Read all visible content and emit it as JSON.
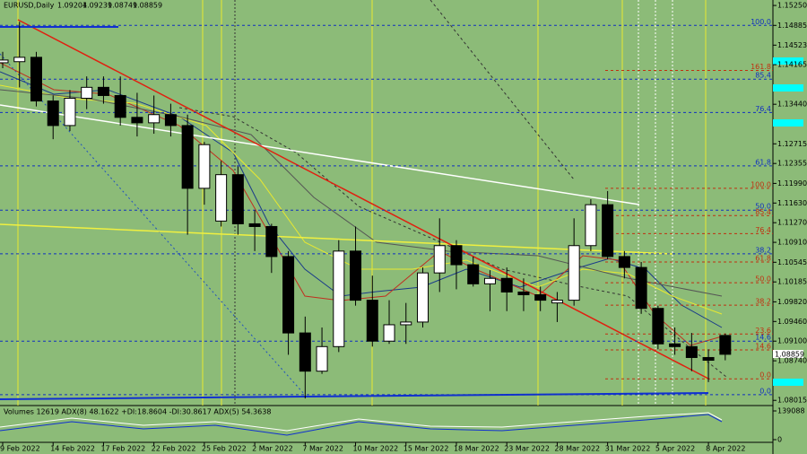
{
  "chart_data": {
    "type": "candlestick",
    "title": "EURUSD,Daily",
    "categories": [
      "9 Feb 2022",
      null,
      null,
      "14 Feb 2022",
      null,
      null,
      "17 Feb 2022",
      null,
      null,
      "22 Feb 2022",
      null,
      null,
      "25 Feb 2022",
      null,
      null,
      "2 Mar 2022",
      null,
      null,
      "7 Mar 2022",
      null,
      null,
      "10 Mar 2022",
      null,
      null,
      "15 Mar 2022",
      null,
      null,
      "18 Mar 2022",
      null,
      null,
      "23 Mar 2022",
      null,
      null,
      "28 Mar 2022",
      null,
      null,
      "31 Mar 2022",
      null,
      null,
      "5 Apr 2022",
      null,
      null,
      "8 Apr 2022",
      null
    ],
    "open": [
      1.142,
      1.1422,
      1.143,
      1.135,
      1.1305,
      1.1355,
      1.1375,
      1.136,
      1.132,
      1.131,
      1.1325,
      1.1305,
      1.119,
      1.113,
      1.1215,
      1.1125,
      1.112,
      1.1065,
      1.0925,
      1.0855,
      1.09,
      1.1075,
      1.0985,
      1.091,
      1.094,
      1.0945,
      1.1035,
      1.1085,
      1.105,
      1.1015,
      1.1025,
      1.1,
      1.0995,
      1.098,
      1.0985,
      1.1085,
      1.116,
      1.1065,
      1.1045,
      1.097,
      1.0905,
      1.09,
      1.088,
      1.09204
    ],
    "high": [
      1.144,
      1.1495,
      1.144,
      1.136,
      1.137,
      1.1395,
      1.1395,
      1.1395,
      1.1365,
      1.136,
      1.1345,
      1.1325,
      1.1275,
      1.124,
      1.123,
      1.115,
      1.1125,
      1.1075,
      1.0955,
      1.0935,
      1.1095,
      1.112,
      1.103,
      1.0985,
      1.098,
      1.1045,
      1.1135,
      1.1095,
      1.1065,
      1.104,
      1.1045,
      1.1025,
      1.101,
      1.1,
      1.1135,
      1.117,
      1.1185,
      1.1075,
      1.1055,
      1.0975,
      1.0935,
      1.0925,
      1.0895,
      1.09239
    ],
    "low": [
      1.141,
      1.1375,
      1.134,
      1.128,
      1.1295,
      1.1335,
      1.1345,
      1.1305,
      1.1285,
      1.129,
      1.1285,
      1.1105,
      1.116,
      1.112,
      1.1105,
      1.1075,
      1.1035,
      1.0885,
      1.0805,
      1.085,
      1.089,
      1.0975,
      1.09,
      1.0905,
      1.0905,
      1.0935,
      1.1,
      1.1005,
      1.101,
      1.0965,
      1.0965,
      1.0965,
      1.0965,
      1.0945,
      1.0975,
      1.1075,
      1.106,
      1.1025,
      1.096,
      1.0895,
      1.0885,
      1.0855,
      1.0835,
      1.08749
    ],
    "close": [
      1.1425,
      1.143,
      1.135,
      1.1305,
      1.1355,
      1.1375,
      1.136,
      1.132,
      1.131,
      1.1325,
      1.1305,
      1.119,
      1.127,
      1.1215,
      1.1125,
      1.112,
      1.1065,
      1.0925,
      1.0855,
      1.09,
      1.1075,
      1.0985,
      1.091,
      1.094,
      1.0945,
      1.1035,
      1.1085,
      1.105,
      1.1015,
      1.1025,
      1.1,
      1.0995,
      1.0985,
      1.0985,
      1.1085,
      1.116,
      1.1065,
      1.1045,
      1.097,
      1.0905,
      1.09,
      1.088,
      1.0875,
      1.08859
    ],
    "up_color": "#ffffff",
    "down_color": "#000000",
    "ylim": [
      1.0792,
      1.1535
    ],
    "yticks": [
      {
        "value": 1.1525,
        "label": "1.15250"
      },
      1.14885,
      1.14523,
      1.14165,
      {
        "value": 1.1344,
        "label": "1.13440"
      },
      1.12715,
      1.12355,
      {
        "value": 1.1199,
        "label": "1.11990"
      },
      {
        "value": 1.1163,
        "label": "1.11630"
      },
      {
        "value": 1.1127,
        "label": "1.11270"
      },
      {
        "value": 1.1091,
        "label": "1.10910"
      },
      1.10545,
      1.10185,
      {
        "value": 1.0982,
        "label": "1.09820"
      },
      {
        "value": 1.0946,
        "label": "1.09460"
      },
      {
        "value": 1.091,
        "label": "1.09100"
      },
      {
        "value": 1.0874,
        "label": "1.08740"
      },
      1.08015
    ],
    "fib_blue": [
      {
        "value": 1.14885,
        "label": "100.0"
      },
      {
        "value": 1.139,
        "label": "85.4"
      },
      {
        "value": 1.1329,
        "label": "76.4"
      },
      {
        "value": 1.1231,
        "label": "61.8"
      },
      {
        "value": 1.115,
        "label": "50.0"
      },
      {
        "value": 1.107,
        "label": "38.2"
      },
      {
        "value": 1.091,
        "label": "14.6"
      },
      {
        "value": 1.0812,
        "label": "0.0"
      }
    ],
    "fib_red": [
      {
        "value": 1.1406,
        "label": "161.8"
      },
      {
        "value": 1.119,
        "label": "100.0"
      },
      {
        "value": 1.114,
        "label": "85.4"
      },
      {
        "value": 1.1107,
        "label": "76.4"
      },
      {
        "value": 1.1055,
        "label": "61.8"
      },
      {
        "value": 1.1017,
        "label": "50.0"
      },
      {
        "value": 1.0976,
        "label": "38.2"
      },
      {
        "value": 1.0923,
        "label": "23.6"
      },
      {
        "value": 1.0894,
        "label": "14.6"
      },
      {
        "value": 1.0841,
        "label": "0.0"
      }
    ],
    "indicator": {
      "label": "Volumes 12619  ADX(8) 48.1622 +DI:18.8604 -DI:30.8617  ADX(5) 54.3638",
      "ylim": [
        0,
        139088
      ],
      "yticks": [
        139088,
        0
      ]
    }
  }
}
